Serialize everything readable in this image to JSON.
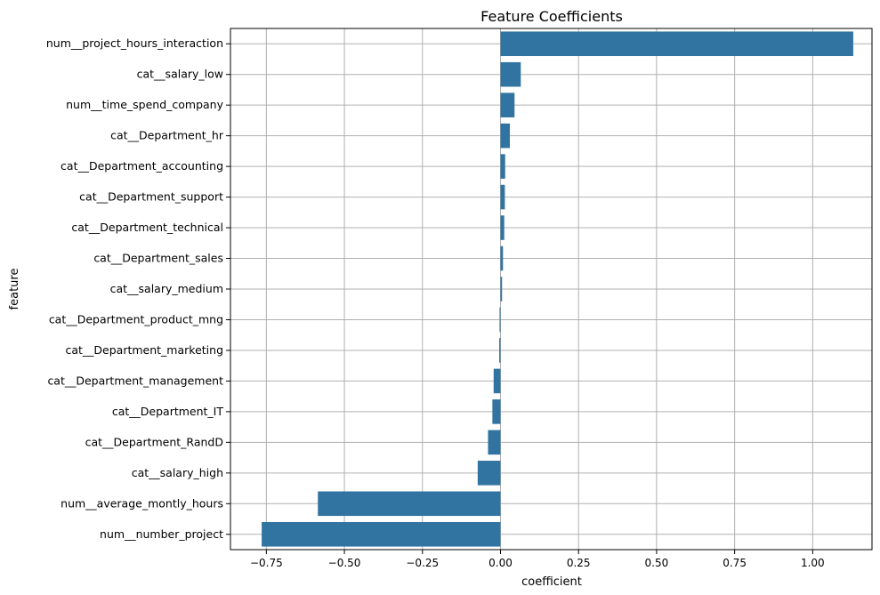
{
  "chart_data": {
    "type": "bar",
    "orientation": "horizontal",
    "title": "Feature Coefficients",
    "xlabel": "coefficient",
    "ylabel": "feature",
    "xlim": [
      -0.865,
      1.19
    ],
    "xticks": [
      -0.75,
      -0.5,
      -0.25,
      0.0,
      0.25,
      0.5,
      0.75,
      1.0
    ],
    "xtick_labels": [
      "−0.75",
      "−0.50",
      "−0.25",
      "0.00",
      "0.25",
      "0.50",
      "0.75",
      "1.00"
    ],
    "grid": true,
    "bar_color": "#3274a1",
    "grid_color": "#b0b0b0",
    "categories": [
      "num__project_hours_interaction",
      "cat__salary_low",
      "num__time_spend_company",
      "cat__Department_hr",
      "cat__Department_accounting",
      "cat__Department_support",
      "cat__Department_technical",
      "cat__Department_sales",
      "cat__salary_medium",
      "cat__Department_product_mng",
      "cat__Department_marketing",
      "cat__Department_management",
      "cat__Department_IT",
      "cat__Department_RandD",
      "cat__salary_high",
      "num__average_montly_hours",
      "num__number_project"
    ],
    "values": [
      1.13,
      0.065,
      0.045,
      0.03,
      0.015,
      0.014,
      0.012,
      0.008,
      0.005,
      -0.003,
      -0.004,
      -0.022,
      -0.026,
      -0.04,
      -0.073,
      -0.585,
      -0.765
    ]
  }
}
